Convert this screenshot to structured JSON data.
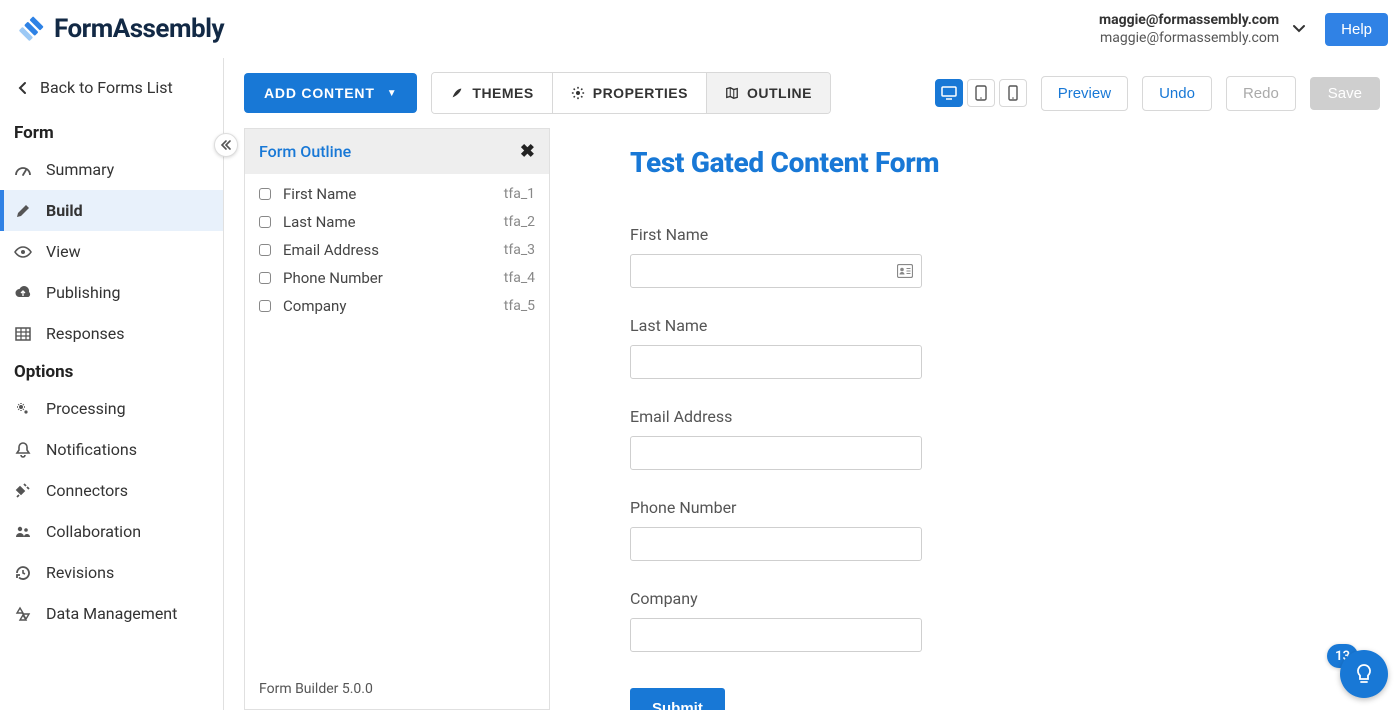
{
  "brand": {
    "name": "FormAssembly"
  },
  "header": {
    "user_email_primary": "maggie@formassembly.com",
    "user_email_secondary": "maggie@formassembly.com",
    "help_label": "Help"
  },
  "sidebar": {
    "back_label": "Back to Forms List",
    "sections": {
      "form": {
        "heading": "Form",
        "items": [
          {
            "label": "Summary",
            "icon": "gauge"
          },
          {
            "label": "Build",
            "icon": "pencil",
            "active": true
          },
          {
            "label": "View",
            "icon": "eye"
          },
          {
            "label": "Publishing",
            "icon": "cloud-upload"
          },
          {
            "label": "Responses",
            "icon": "grid"
          }
        ]
      },
      "options": {
        "heading": "Options",
        "items": [
          {
            "label": "Processing",
            "icon": "cogs"
          },
          {
            "label": "Notifications",
            "icon": "bell"
          },
          {
            "label": "Connectors",
            "icon": "plug"
          },
          {
            "label": "Collaboration",
            "icon": "users"
          },
          {
            "label": "Revisions",
            "icon": "history"
          },
          {
            "label": "Data Management",
            "icon": "recycle"
          }
        ]
      }
    }
  },
  "toolbar": {
    "add_content_label": "ADD CONTENT",
    "tabs": {
      "themes": "THEMES",
      "properties": "PROPERTIES",
      "outline": "OUTLINE"
    },
    "active_tab": "outline",
    "preview_label": "Preview",
    "undo_label": "Undo",
    "redo_label": "Redo",
    "save_label": "Save"
  },
  "outline": {
    "title": "Form Outline",
    "footer": "Form Builder 5.0.0",
    "items": [
      {
        "name": "First Name",
        "id": "tfa_1"
      },
      {
        "name": "Last Name",
        "id": "tfa_2"
      },
      {
        "name": "Email Address",
        "id": "tfa_3"
      },
      {
        "name": "Phone Number",
        "id": "tfa_4"
      },
      {
        "name": "Company",
        "id": "tfa_5"
      }
    ]
  },
  "form": {
    "title": "Test Gated Content Form",
    "fields": [
      {
        "label": "First Name",
        "has_contact_icon": true
      },
      {
        "label": "Last Name"
      },
      {
        "label": "Email Address"
      },
      {
        "label": "Phone Number"
      },
      {
        "label": "Company"
      }
    ],
    "submit_label": "Submit"
  },
  "assistant": {
    "badge_count": "13"
  },
  "colors": {
    "accent": "#1878d6",
    "active_bg": "#e8f1fb",
    "border": "#d8d8d8"
  }
}
